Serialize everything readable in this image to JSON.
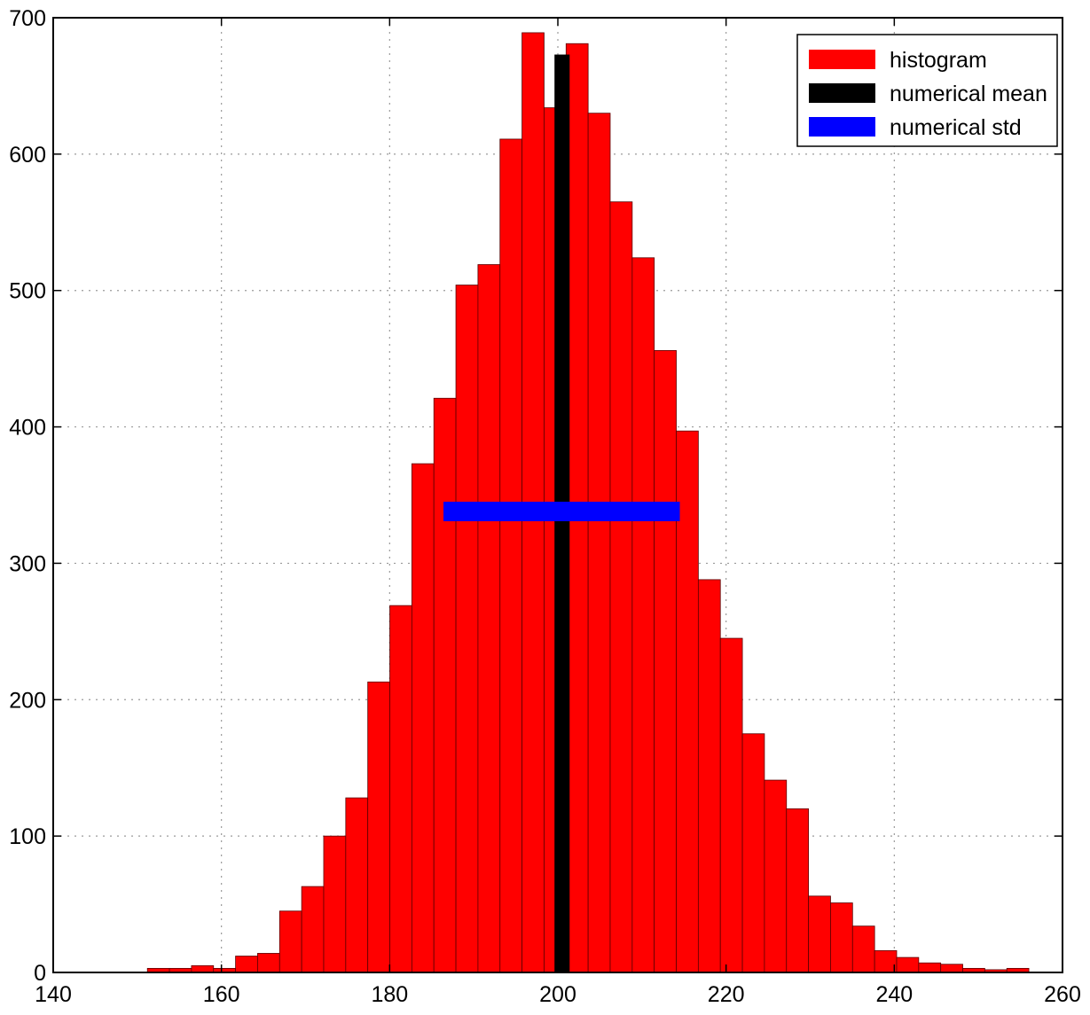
{
  "chart_data": {
    "type": "bar",
    "title": "",
    "xlabel": "",
    "ylabel": "",
    "xlim": [
      140,
      260
    ],
    "ylim": [
      0,
      700
    ],
    "xticks": [
      140,
      160,
      180,
      200,
      220,
      240,
      260
    ],
    "yticks": [
      0,
      100,
      200,
      300,
      400,
      500,
      600,
      700
    ],
    "x_tick_labels": [
      "140",
      "160",
      "180",
      "200",
      "220",
      "240",
      "260"
    ],
    "y_tick_labels": [
      "0",
      "100",
      "200",
      "300",
      "400",
      "500",
      "600",
      "700"
    ],
    "grid": true,
    "legend_position": "top-right",
    "series": [
      {
        "name": "histogram",
        "kind": "histogram",
        "color": "#ff0000",
        "bin_start": 151.2,
        "bin_width": 2.62,
        "values": [
          3,
          3,
          5,
          3,
          12,
          14,
          45,
          63,
          100,
          128,
          213,
          269,
          373,
          421,
          504,
          519,
          611,
          689,
          634,
          681,
          630,
          565,
          524,
          456,
          397,
          288,
          245,
          175,
          141,
          120,
          56,
          51,
          34,
          16,
          11,
          7,
          6,
          3,
          2,
          3
        ]
      },
      {
        "name": "numerical mean",
        "kind": "vertical-bar",
        "color": "#000000",
        "x": 200.5,
        "x_range": [
          199.6,
          201.4
        ],
        "y": 673
      },
      {
        "name": "numerical std",
        "kind": "horizontal-interval",
        "color": "#0000ff",
        "x_range": [
          186.4,
          214.5
        ],
        "y": 338
      }
    ]
  }
}
